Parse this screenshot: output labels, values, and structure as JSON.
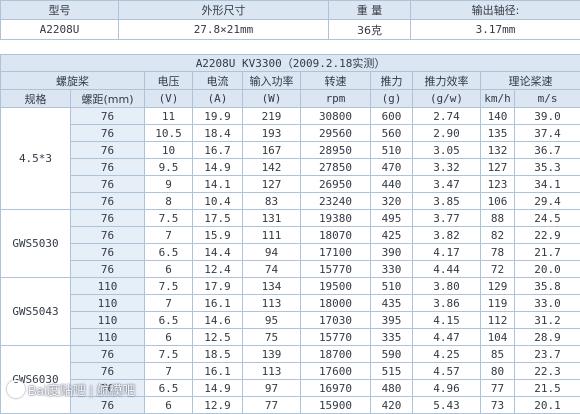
{
  "spec_table": {
    "headers": [
      "型号",
      "外形尺寸",
      "重 量",
      "输出轴径:"
    ],
    "values": [
      "A2208U",
      "27.8×21mm",
      "36克",
      "3.17mm"
    ]
  },
  "perf_table": {
    "title": "A2208U KV3300（2009.2.18实测）",
    "group_headers": {
      "propeller": "螺旋桨",
      "voltage": "电压",
      "current": "电流",
      "input_power": "输入功率",
      "rpm": "转速",
      "thrust": "推力",
      "efficiency": "推力效率",
      "theoretical_speed": "理论桨速"
    },
    "sub_headers": {
      "spec": "规格",
      "pitch": "螺距(mm)",
      "voltage_unit": "(V)",
      "current_unit": "(A)",
      "power_unit": "(W)",
      "rpm_unit": "rpm",
      "thrust_unit": "(g)",
      "efficiency_unit": "(g/w)",
      "speed_kmh": "km/h",
      "speed_ms": "m/s"
    },
    "groups": [
      {
        "spec": "4.5*3",
        "rows": [
          [
            "76",
            "11",
            "19.9",
            "219",
            "30800",
            "600",
            "2.74",
            "140",
            "39.0"
          ],
          [
            "76",
            "10.5",
            "18.4",
            "193",
            "29560",
            "560",
            "2.90",
            "135",
            "37.4"
          ],
          [
            "76",
            "10",
            "16.7",
            "167",
            "28950",
            "510",
            "3.05",
            "132",
            "36.7"
          ],
          [
            "76",
            "9.5",
            "14.9",
            "142",
            "27850",
            "470",
            "3.32",
            "127",
            "35.3"
          ],
          [
            "76",
            "9",
            "14.1",
            "127",
            "26950",
            "440",
            "3.47",
            "123",
            "34.1"
          ],
          [
            "76",
            "8",
            "10.4",
            "83",
            "23240",
            "320",
            "3.85",
            "106",
            "29.4"
          ]
        ]
      },
      {
        "spec": "GWS5030",
        "rows": [
          [
            "76",
            "7.5",
            "17.5",
            "131",
            "19380",
            "495",
            "3.77",
            "88",
            "24.5"
          ],
          [
            "76",
            "7",
            "15.9",
            "111",
            "18070",
            "425",
            "3.82",
            "82",
            "22.9"
          ],
          [
            "76",
            "6.5",
            "14.4",
            "94",
            "17100",
            "390",
            "4.17",
            "78",
            "21.7"
          ],
          [
            "76",
            "6",
            "12.4",
            "74",
            "15770",
            "330",
            "4.44",
            "72",
            "20.0"
          ]
        ]
      },
      {
        "spec": "GWS5043",
        "rows": [
          [
            "110",
            "7.5",
            "17.9",
            "134",
            "19500",
            "510",
            "3.80",
            "129",
            "35.8"
          ],
          [
            "110",
            "7",
            "16.1",
            "113",
            "18000",
            "435",
            "3.86",
            "119",
            "33.0"
          ],
          [
            "110",
            "6.5",
            "14.6",
            "95",
            "17030",
            "395",
            "4.15",
            "112",
            "31.2"
          ],
          [
            "110",
            "6",
            "12.5",
            "75",
            "15770",
            "335",
            "4.47",
            "104",
            "28.9"
          ]
        ]
      },
      {
        "spec": "GWS6030",
        "rows": [
          [
            "76",
            "7.5",
            "18.5",
            "139",
            "18700",
            "590",
            "4.25",
            "85",
            "23.7"
          ],
          [
            "76",
            "7",
            "16.1",
            "113",
            "17600",
            "515",
            "4.57",
            "80",
            "22.3"
          ],
          [
            "76",
            "6.5",
            "14.9",
            "97",
            "16970",
            "480",
            "4.96",
            "77",
            "21.5"
          ],
          [
            "76",
            "6",
            "12.9",
            "77",
            "15900",
            "420",
            "5.43",
            "73",
            "20.1"
          ]
        ]
      }
    ]
  },
  "watermark": {
    "text": "Bai度贴吧 | 航模吧",
    "icon": "baidu-paw-icon"
  }
}
